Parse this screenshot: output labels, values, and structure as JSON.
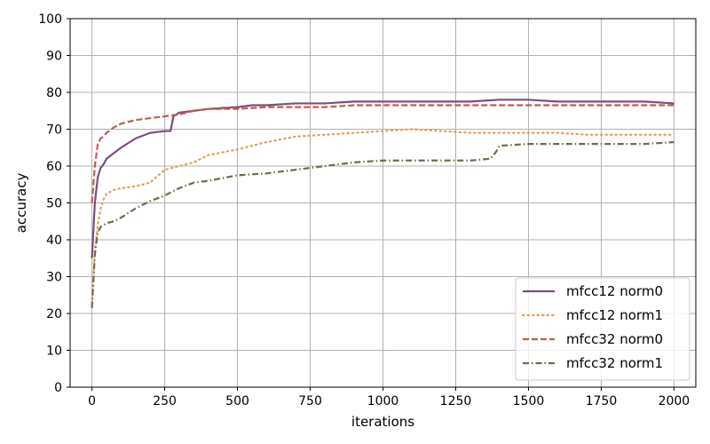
{
  "chart_data": {
    "type": "line",
    "xlabel": "iterations",
    "ylabel": "accuracy",
    "xlim": [
      -75,
      2075
    ],
    "ylim": [
      0,
      100
    ],
    "xticks": [
      0,
      250,
      500,
      750,
      1000,
      1250,
      1500,
      1750,
      2000
    ],
    "yticks": [
      0,
      10,
      20,
      30,
      40,
      50,
      60,
      70,
      80,
      90,
      100
    ],
    "grid": true,
    "legend_position": "bottom-right",
    "series": [
      {
        "name": "mfcc12 norm0",
        "color": "#7b4f7a",
        "style": "solid",
        "x": [
          0,
          10,
          20,
          30,
          40,
          50,
          75,
          100,
          150,
          200,
          250,
          270,
          280,
          300,
          350,
          400,
          500,
          550,
          600,
          700,
          800,
          900,
          1000,
          1100,
          1200,
          1300,
          1400,
          1500,
          1600,
          1700,
          1800,
          1900,
          2000
        ],
        "y": [
          35,
          50,
          57,
          59.5,
          60.5,
          62,
          63.5,
          65,
          67.5,
          69,
          69.5,
          69.5,
          73.5,
          74.5,
          75,
          75.5,
          76,
          76.5,
          76.5,
          77,
          77,
          77.5,
          77.5,
          77.5,
          77.5,
          77.5,
          78,
          78,
          77.5,
          77.5,
          77.5,
          77.5,
          77
        ]
      },
      {
        "name": "mfcc12 norm1",
        "color": "#dba462",
        "style": "dotted",
        "x": [
          0,
          10,
          20,
          30,
          40,
          50,
          75,
          100,
          150,
          200,
          250,
          300,
          350,
          400,
          500,
          600,
          700,
          800,
          900,
          1000,
          1100,
          1200,
          1300,
          1400,
          1500,
          1600,
          1700,
          1800,
          1900,
          2000
        ],
        "y": [
          22,
          37,
          44,
          48.5,
          51,
          52.5,
          53.5,
          54,
          54.5,
          55.5,
          59,
          60,
          61,
          63,
          64.5,
          66.5,
          68,
          68.5,
          69,
          69.5,
          70,
          69.5,
          69,
          69,
          69,
          69,
          68.5,
          68.5,
          68.5,
          68.5
        ]
      },
      {
        "name": "mfcc32 norm0",
        "color": "#c25b4f",
        "style": "dashed",
        "x": [
          0,
          10,
          20,
          30,
          40,
          50,
          75,
          100,
          150,
          200,
          250,
          300,
          350,
          400,
          500,
          600,
          700,
          800,
          900,
          1000,
          1100,
          1200,
          1300,
          1400,
          1500,
          1600,
          1700,
          1800,
          1900,
          2000
        ],
        "y": [
          50,
          60,
          66,
          67.5,
          68,
          69,
          70.5,
          71.5,
          72.5,
          73,
          73.5,
          74,
          75,
          75.5,
          75.5,
          76,
          76,
          76,
          76.5,
          76.5,
          76.5,
          76.5,
          76.5,
          76.5,
          76.5,
          76.5,
          76.5,
          76.5,
          76.5,
          76.5
        ]
      },
      {
        "name": "mfcc32 norm1",
        "color": "#6b6e48",
        "style": "dashdot",
        "x": [
          0,
          10,
          20,
          30,
          40,
          50,
          75,
          100,
          150,
          200,
          250,
          300,
          350,
          400,
          500,
          600,
          700,
          800,
          900,
          1000,
          1100,
          1200,
          1300,
          1370,
          1390,
          1400,
          1500,
          1600,
          1700,
          1800,
          1900,
          2000
        ],
        "y": [
          21.5,
          36,
          42,
          43.5,
          44,
          44.5,
          45,
          46,
          48.5,
          50.5,
          52,
          54,
          55.5,
          56,
          57.5,
          58,
          59,
          60,
          61,
          61.5,
          61.5,
          61.5,
          61.5,
          62,
          64,
          65.5,
          66,
          66,
          66,
          66,
          66,
          66.5
        ]
      }
    ]
  }
}
